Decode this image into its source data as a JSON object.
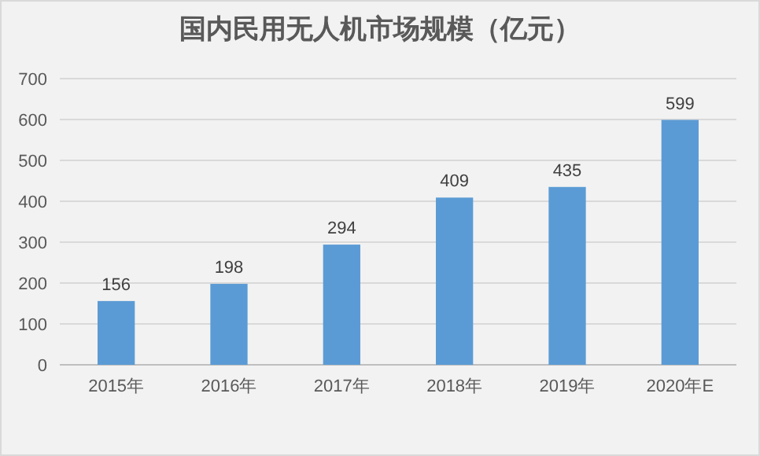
{
  "chart_data": {
    "type": "bar",
    "title": "国内民用无人机市场规模（亿元）",
    "categories": [
      "2015年",
      "2016年",
      "2017年",
      "2018年",
      "2019年",
      "2020年E"
    ],
    "values": [
      156,
      198,
      294,
      409,
      435,
      599
    ],
    "color": "#5b9bd5",
    "ylim": [
      0,
      700
    ],
    "yticks": [
      0,
      100,
      200,
      300,
      400,
      500,
      600,
      700
    ],
    "grid": "y",
    "data_labels": true
  }
}
